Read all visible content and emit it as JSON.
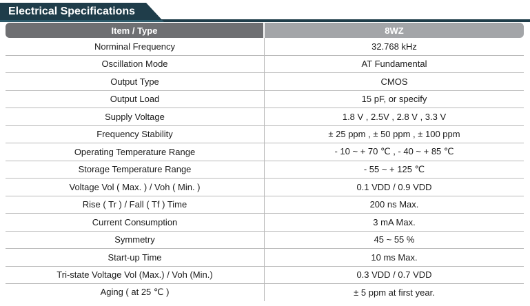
{
  "section_title": "Electrical Specifications",
  "header": {
    "item_label": "Item / Type",
    "type_label": "8WZ"
  },
  "rows": [
    {
      "item": "Norminal Frequency",
      "value": "32.768 kHz"
    },
    {
      "item": "Oscillation Mode",
      "value": "AT Fundamental"
    },
    {
      "item": "Output Type",
      "value": "CMOS"
    },
    {
      "item": "Output Load",
      "value": "15 pF, or specify"
    },
    {
      "item": "Supply Voltage",
      "value": "1.8 V , 2.5V , 2.8 V , 3.3 V"
    },
    {
      "item": "Frequency Stability",
      "value": "± 25 ppm , ± 50 ppm , ± 100 ppm"
    },
    {
      "item": "Operating Temperature Range",
      "value": "- 10 ~ + 70 ℃ , - 40 ~ + 85 ℃"
    },
    {
      "item": "Storage Temperature Range",
      "value": "- 55 ~ + 125 ℃"
    },
    {
      "item": "Voltage Vol ( Max. ) / Voh ( Min. )",
      "value": "0.1 VDD / 0.9 VDD"
    },
    {
      "item": "Rise ( Tr ) / Fall ( Tf ) Time",
      "value": "200 ns Max."
    },
    {
      "item": "Current Consumption",
      "value": "3 mA Max."
    },
    {
      "item": "Symmetry",
      "value": "45 ~ 55 %"
    },
    {
      "item": "Start-up Time",
      "value": "10 ms Max."
    },
    {
      "item": "Tri-state Voltage Vol (Max.) / Voh (Min.)",
      "value": "0.3 VDD / 0.7 VDD"
    },
    {
      "item": "Aging ( at 25 ℃ )",
      "value": "± 5 ppm at first year."
    }
  ],
  "colors": {
    "title_bg": "#1f3d4a",
    "header_item_bg": "#6e6f72",
    "header_type_bg": "#a3a5a8",
    "row_border": "#b9b9b9"
  }
}
